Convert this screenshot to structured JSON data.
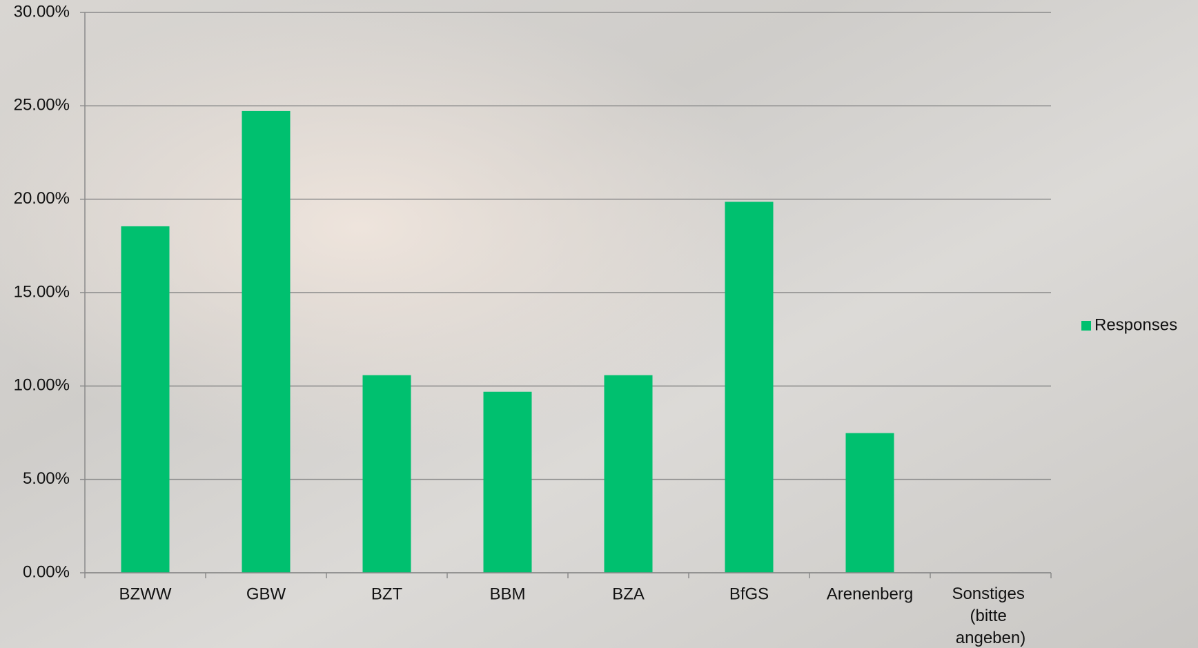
{
  "chart_data": {
    "type": "bar",
    "categories": [
      "BZWW",
      "GBW",
      "BZT",
      "BBM",
      "BZA",
      "BfGS",
      "Arenenberg",
      "Sonstiges (bitte angeben)"
    ],
    "series": [
      {
        "name": "Responses",
        "color": "#00c06f",
        "values": [
          18.55,
          24.72,
          10.58,
          9.69,
          10.58,
          19.86,
          7.48,
          0
        ]
      }
    ],
    "ylim": [
      0,
      30
    ],
    "yticks": [
      {
        "value": 0,
        "label": "0.00%"
      },
      {
        "value": 5,
        "label": "5.00%"
      },
      {
        "value": 10,
        "label": "10.00%"
      },
      {
        "value": 15,
        "label": "15.00%"
      },
      {
        "value": 20,
        "label": "20.00%"
      },
      {
        "value": 25,
        "label": "25.00%"
      },
      {
        "value": 30,
        "label": "30.00%"
      }
    ],
    "grid": true,
    "legend": "right"
  }
}
